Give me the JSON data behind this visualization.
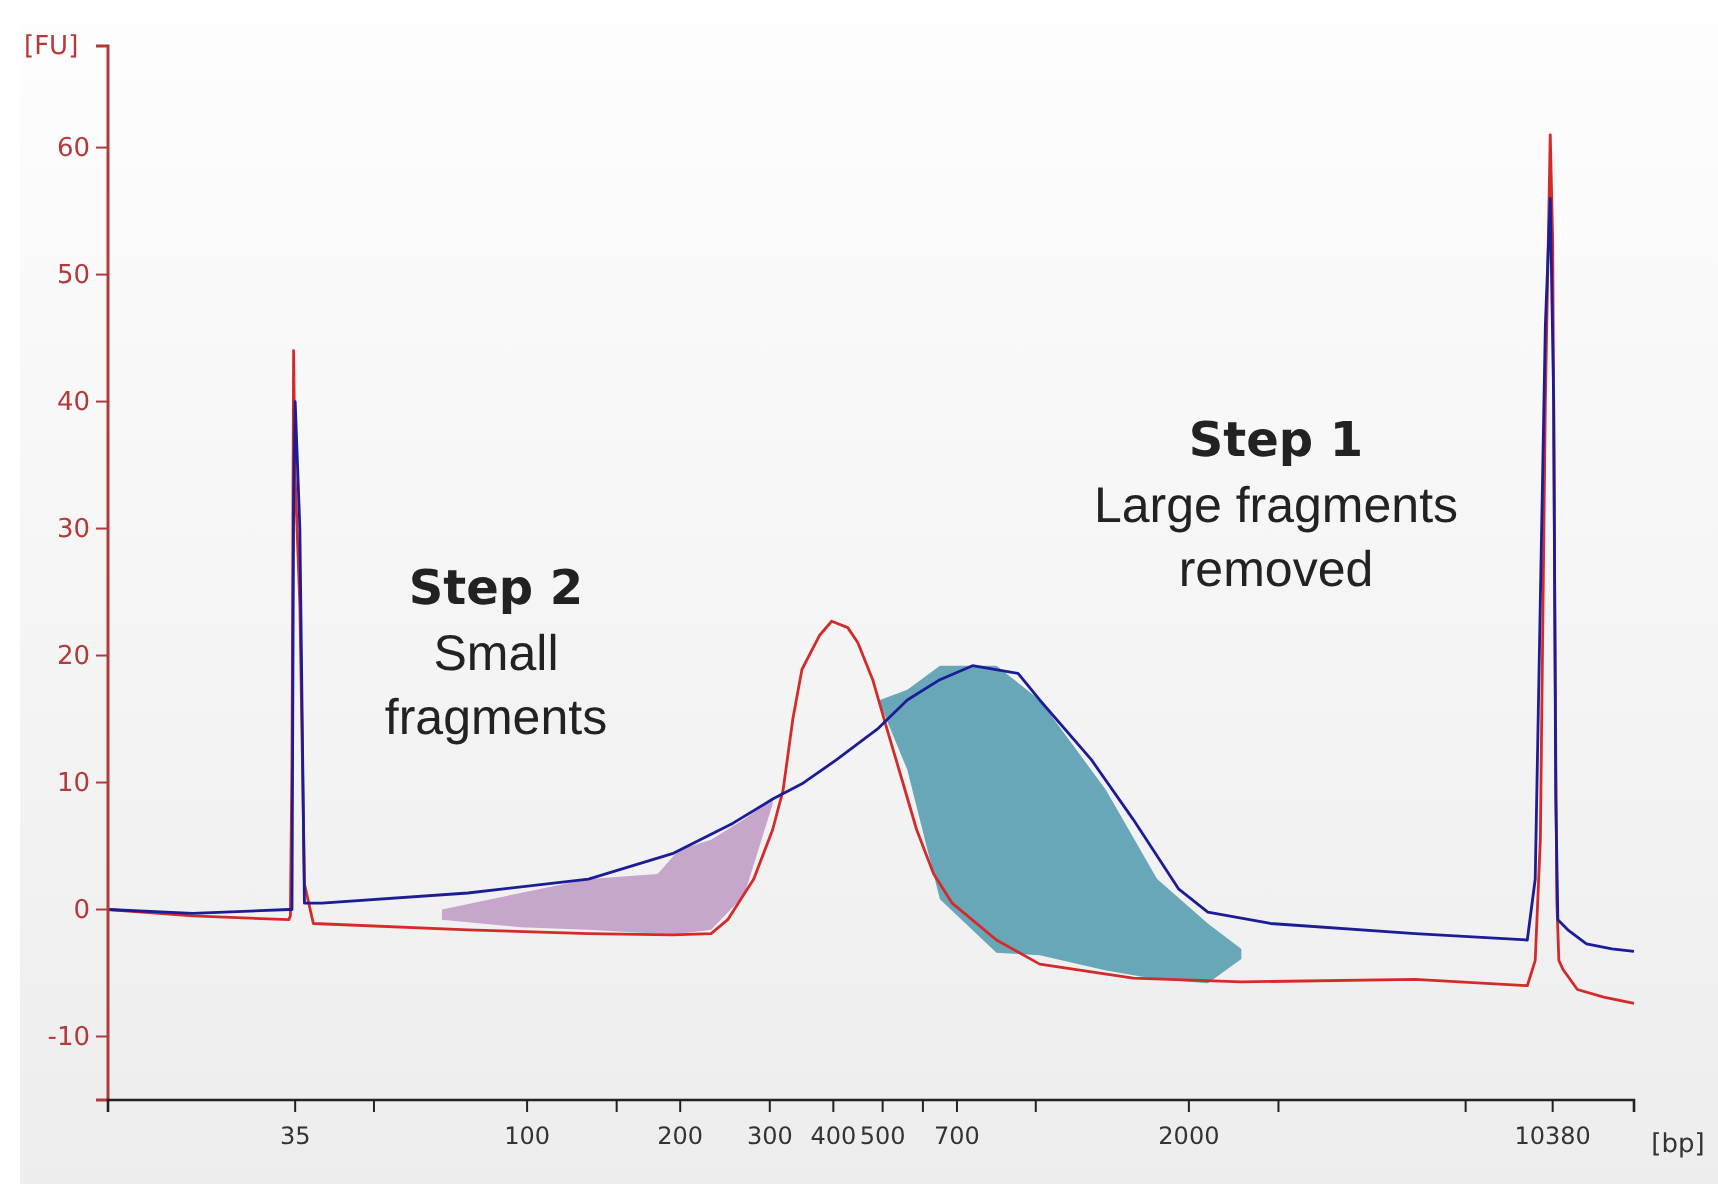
{
  "chart_data": {
    "type": "line",
    "ylabel": "[FU]",
    "xlabel": "[bp]",
    "annotations": [
      "Step 2",
      "Small fragments",
      "Step 1",
      "Large fragments removed"
    ],
    "xlim": [
      15,
      15000
    ],
    "log": "x",
    "ylim": [
      -15,
      68
    ],
    "xticks": [
      35,
      {
        "value": 50,
        "label": null
      },
      100,
      {
        "value": 150,
        "label": null
      },
      200,
      300,
      400,
      500,
      {
        "value": 600,
        "label": null
      },
      700,
      {
        "value": 1000,
        "label": null
      },
      2000,
      {
        "value": 3000,
        "label": null
      },
      {
        "value": 7000,
        "label": null
      },
      10380
    ],
    "yticks": [
      -10,
      0,
      10,
      20,
      30,
      40,
      50,
      60
    ],
    "line_style": "solid",
    "series": [
      {
        "color": "#c7a6cc",
        "x": [
          68,
          97,
          132,
          180.5,
          199,
          230,
          267,
          304
        ],
        "values": [
          null,
          null,
          null,
          null,
          null,
          null,
          null,
          null
        ],
        "upper": [
          0,
          1.3,
          2.4,
          2.8,
          4.7,
          5.5,
          7.1,
          8.7
        ],
        "lower": [
          -0.8,
          -1.4,
          -1.6,
          -1.9,
          -1.9,
          -1.6,
          1.1,
          8.3
        ]
      },
      {
        "color": "#68a7b8",
        "x": [
          494,
          559,
          648,
          837,
          1018,
          1375,
          1732,
          2179,
          2536
        ],
        "values": [
          null,
          null,
          null,
          null,
          null,
          null,
          null,
          null,
          null
        ],
        "upper": [
          16.5,
          17.3,
          19.2,
          19.2,
          16.5,
          9.4,
          2.4,
          -1.1,
          -3.1
        ],
        "lower": [
          16.2,
          11,
          0.8,
          -3.4,
          -3.6,
          -4.8,
          -5.5,
          -5.8,
          -3.9
        ]
      },
      {
        "color": "#d42a2a",
        "x": [
          15,
          22,
          34,
          34.25,
          34.5,
          34.75,
          35,
          35.75,
          36.5,
          38,
          76.5,
          132,
          193,
          230,
          248,
          279,
          304,
          318.6,
          333,
          347,
          376,
          397,
          427,
          447,
          478,
          510,
          546,
          583,
          630,
          685,
          837,
          1018,
          1554,
          2536,
          5570,
          9254,
          9592,
          9817,
          10042,
          10267,
          10380,
          10478,
          10576,
          10675,
          10871,
          11607,
          13080,
          15000
        ],
        "values": [
          0,
          -0.5,
          -0.8,
          -0.5,
          12,
          44,
          34,
          24,
          2,
          -1.1,
          -1.6,
          -1.9,
          -2,
          -1.9,
          -0.8,
          2.4,
          6.3,
          9.4,
          15,
          18.9,
          21.6,
          22.7,
          22.2,
          21,
          18.1,
          14.2,
          10.2,
          6.3,
          2.8,
          0.5,
          -2.4,
          -4.3,
          -5.4,
          -5.7,
          -5.5,
          -6,
          -4,
          5.5,
          40,
          61,
          52.8,
          24,
          0.8,
          -4,
          -4.7,
          -6.3,
          -6.9,
          -7.4
        ]
      },
      {
        "color": "#1c1c96",
        "x": [
          15,
          22,
          34,
          34.5,
          34.75,
          35,
          35.75,
          36.5,
          39.5,
          76.5,
          132,
          193,
          254,
          304,
          347,
          406,
          488,
          559,
          648,
          751,
          923,
          1018,
          1286,
          1554,
          1911,
          2179,
          2893,
          5570,
          9254,
          9592,
          9817,
          10042,
          10267,
          10429,
          10527,
          10626,
          11116,
          12098,
          13571,
          15000
        ],
        "values": [
          0,
          -0.3,
          0,
          0,
          32,
          40,
          30,
          0.5,
          0.5,
          1.3,
          2.4,
          4.4,
          6.8,
          8.7,
          9.9,
          11.8,
          14.2,
          16.5,
          18.1,
          19.2,
          18.6,
          16.5,
          11.8,
          7.1,
          1.6,
          -0.2,
          -1.1,
          -1.9,
          -2.4,
          2.4,
          24.4,
          46,
          56,
          40,
          8.7,
          -0.8,
          -1.6,
          -2.7,
          -3.1,
          -3.3
        ]
      }
    ]
  }
}
